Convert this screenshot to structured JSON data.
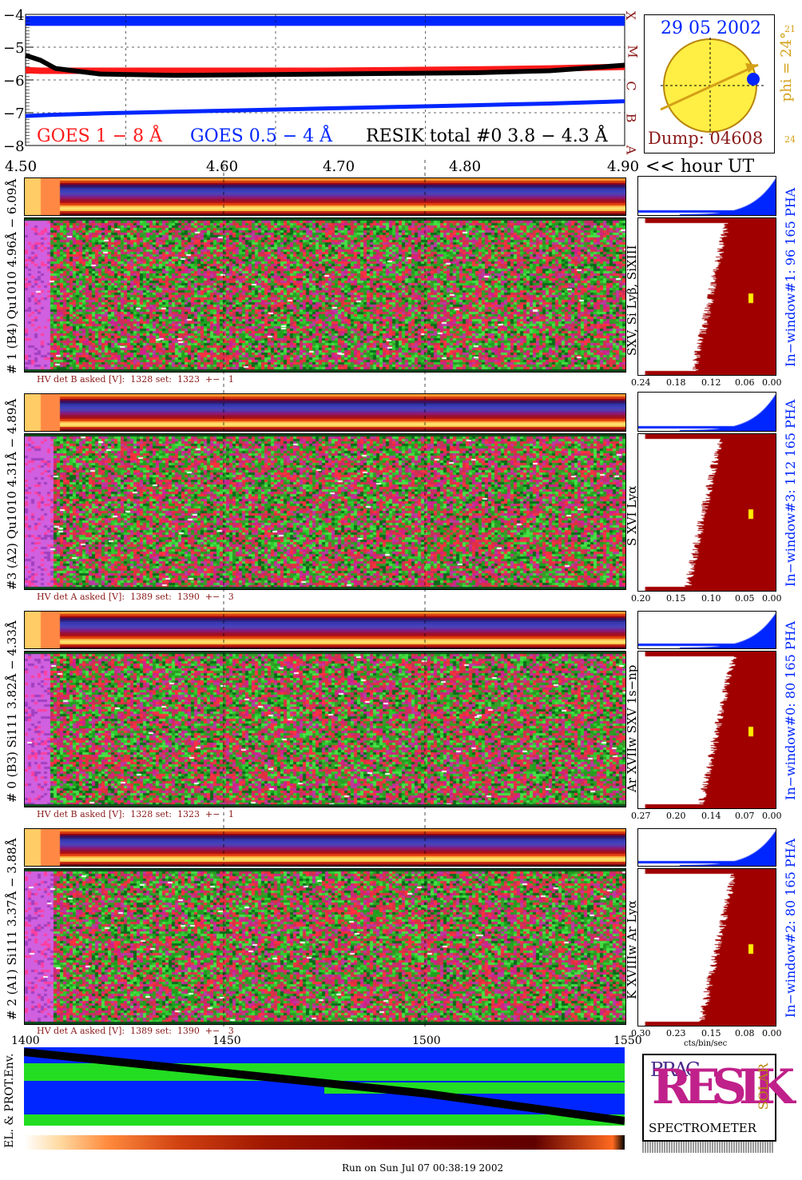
{
  "goes": {
    "y_tick_labels": [
      "−4",
      "−5",
      "−6",
      "−7",
      "−8"
    ],
    "class_letters": [
      "X",
      "M",
      "C",
      "B",
      "A"
    ],
    "legend": {
      "goes_long": "GOES 1 − 8 Å",
      "goes_short": "GOES 0.5 − 4 Å",
      "resik": "RESIK total #0  3.8 − 4.3 Å"
    },
    "colors": {
      "goes_long": "#ff1a1a",
      "goes_short": "#0026ff",
      "resik": "#000000"
    }
  },
  "sun_panel": {
    "date": "29 05 2002",
    "phi": "phi = 24°",
    "phi_ticks": [
      "21",
      "24"
    ],
    "dump": "Dump: 04608"
  },
  "time_axis": {
    "tick_labels": [
      "4.50",
      "4.60",
      "4.70",
      "4.80",
      "4.90"
    ],
    "unit_label": "<< hour UT"
  },
  "panels": [
    {
      "left_label": "# 1 (B4) Qu1010 4.96Å − 6.09Å",
      "line_label": "SXV, Si Lyβ, SiXIII",
      "hv_text": "HV det B asked [V]:  1328 set:  1323  +−   1",
      "window_label": "In−window#1:   96 165  PHA",
      "x_ticks": [
        "0.24",
        "0.18",
        "0.12",
        "0.06",
        "0.00"
      ]
    },
    {
      "left_label": "#3 (A2) Qu1010  4.31Å − 4.89Å",
      "line_label": "S XVI Lyα",
      "hv_text": "HV det A asked [V]:  1389 set:  1390  +−   3",
      "window_label": "In−window#3:   112 165  PHA",
      "x_ticks": [
        "0.20",
        "0.15",
        "0.10",
        "0.05",
        "0.00"
      ]
    },
    {
      "left_label": "# 0 (B3) Si111  3.82Å − 4.33Å",
      "line_label": "Ar XVIIw  SXV 1s−np",
      "hv_text": "HV det B asked [V]:  1328 set:  1323  +−   1",
      "window_label": "In−window#0:   80 165  PHA",
      "x_ticks": [
        "0.27",
        "0.20",
        "0.14",
        "0.07",
        "0.00"
      ]
    },
    {
      "left_label": "# 2 (A1) Si111  3.37Å − 3.88Å",
      "line_label": "K XVIIIw  Ar Lyα",
      "hv_text": "HV det A asked [V]:  1389 set:  1390  +−   3",
      "window_label": "In−window#2:   80 165  PHA",
      "x_ticks": [
        "0.30",
        "0.23",
        "0.15",
        "0.08",
        "0.00"
      ],
      "x_unit": "cts/bin/sec"
    }
  ],
  "env": {
    "label": "EL. & PROT.Env.",
    "x_ticks": [
      "1400",
      "1450",
      "1500",
      "1550"
    ]
  },
  "logo": {
    "line1": "BRAG",
    "big": "RESIK",
    "solar": "SOLAR",
    "bottom": "SPECTROMETER"
  },
  "footer": "Run on Sun Jul 07 00:38:19 2002",
  "chart_data": [
    {
      "type": "line",
      "title": "",
      "x": [
        4.5,
        4.51,
        4.52,
        4.55,
        4.6,
        4.65,
        4.7,
        4.75,
        4.8,
        4.85,
        4.9
      ],
      "xlim": [
        4.5,
        4.9
      ],
      "ylim": [
        -8,
        -4
      ],
      "series": [
        {
          "name": "GOES 1 − 8 Å",
          "values": [
            -5.7,
            -5.72,
            -5.72,
            -5.72,
            -5.72,
            -5.72,
            -5.72,
            -5.7,
            -5.68,
            -5.65,
            -5.6
          ]
        },
        {
          "name": "GOES 0.5 − 4 Å",
          "values": [
            -7.1,
            -7.08,
            -7.06,
            -7.02,
            -6.97,
            -6.92,
            -6.87,
            -6.82,
            -6.77,
            -6.72,
            -6.65
          ]
        },
        {
          "name": "RESIK total #0  3.8 − 4.3 Å",
          "values": [
            -5.25,
            -5.4,
            -5.65,
            -5.82,
            -5.86,
            -5.84,
            -5.82,
            -5.8,
            -5.78,
            -5.72,
            -5.55
          ]
        }
      ]
    },
    {
      "type": "line",
      "title": "",
      "x": [
        1400,
        1450,
        1500,
        1550
      ],
      "xlim": [
        1400,
        1550
      ],
      "series": [
        {
          "name": "EL. & PROT.Env.",
          "values": [
            1.0,
            0.7,
            0.4,
            0.0
          ]
        }
      ]
    }
  ]
}
